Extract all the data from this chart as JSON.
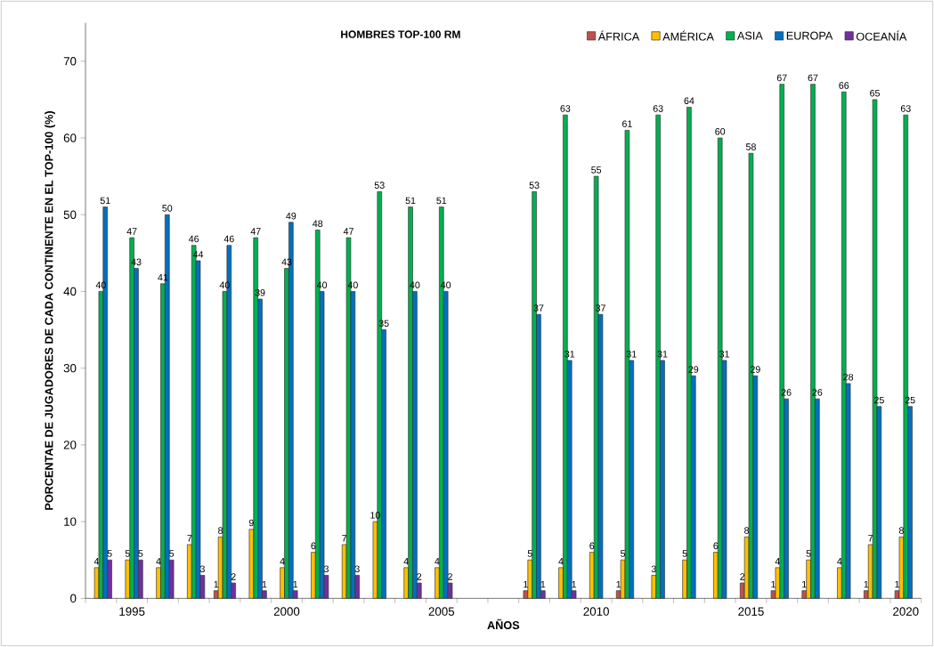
{
  "chart_data": {
    "type": "bar",
    "title": "HOMBRES TOP-100 RM",
    "xlabel": "AÑOS",
    "ylabel": "PORCENTAE DE JUGADORES DE CADA CONTINENTE EN EL TOP-100 (%)",
    "categories": [
      null,
      "1995",
      null,
      null,
      null,
      null,
      "2000",
      null,
      null,
      null,
      null,
      "2005",
      null,
      null,
      null,
      null,
      "2010",
      null,
      null,
      null,
      null,
      "2015",
      null,
      null,
      null,
      null,
      "2020"
    ],
    "series": [
      {
        "name": "ÁFRICA",
        "color": "#c0504d",
        "values": [
          null,
          null,
          null,
          null,
          1,
          null,
          null,
          null,
          null,
          null,
          null,
          null,
          null,
          null,
          1,
          null,
          null,
          1,
          null,
          null,
          null,
          2,
          1,
          1,
          null,
          1,
          1
        ]
      },
      {
        "name": "AMÉRICA",
        "color": "#ffc000",
        "values": [
          4,
          5,
          4,
          7,
          8,
          9,
          4,
          6,
          7,
          10,
          4,
          4,
          null,
          null,
          5,
          4,
          6,
          5,
          3,
          5,
          6,
          8,
          4,
          5,
          4,
          7,
          8
        ]
      },
      {
        "name": "ASIA",
        "color": "#00b050",
        "values": [
          40,
          47,
          41,
          46,
          40,
          47,
          43,
          48,
          47,
          53,
          51,
          51,
          null,
          null,
          53,
          63,
          55,
          61,
          63,
          64,
          60,
          58,
          67,
          67,
          66,
          65,
          63
        ]
      },
      {
        "name": "EUROPA",
        "color": "#0070c0",
        "values": [
          51,
          43,
          50,
          44,
          46,
          39,
          49,
          40,
          40,
          35,
          40,
          40,
          null,
          null,
          37,
          31,
          37,
          31,
          31,
          29,
          31,
          29,
          26,
          26,
          28,
          25,
          25
        ]
      },
      {
        "name": "OCEANÍA",
        "color": "#7030a0",
        "values": [
          5,
          5,
          5,
          3,
          2,
          1,
          1,
          3,
          3,
          null,
          2,
          2,
          null,
          null,
          1,
          1,
          null,
          null,
          null,
          null,
          null,
          null,
          null,
          null,
          null,
          null,
          null
        ]
      }
    ],
    "ylim": [
      0,
      75
    ],
    "yticks": [
      0,
      10,
      20,
      30,
      40,
      50,
      60,
      70
    ],
    "data_labels": true,
    "legend": "top right"
  }
}
